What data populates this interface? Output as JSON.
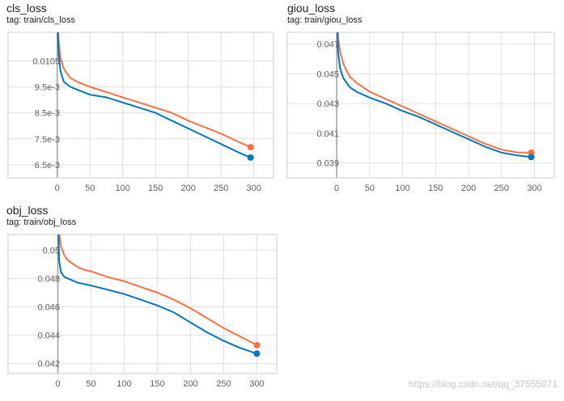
{
  "charts": [
    {
      "title": "cls_loss",
      "tag": "tag: train/cls_loss"
    },
    {
      "title": "giou_loss",
      "tag": "tag: train/giou_loss"
    },
    {
      "title": "obj_loss",
      "tag": "tag: train/obj_loss"
    }
  ],
  "watermark": "https://blog.csdn.net/qq_37555071",
  "colors": {
    "orange": "#ff7043",
    "blue": "#0077bb",
    "grid": "#e0e0e0",
    "zero_axis": "#9e9e9e",
    "border": "#cccccc"
  },
  "chart_data": [
    {
      "type": "line",
      "title": "cls_loss",
      "x_ticks": [
        0,
        50,
        100,
        150,
        200,
        250,
        300
      ],
      "y_ticks": [
        0.0105,
        0.0095,
        0.0085,
        0.0075,
        0.0065
      ],
      "y_tick_labels": [
        "0.0105",
        "9.5e-3",
        "8.5e-3",
        "7.5e-3",
        "6.5e-3"
      ],
      "xlim": [
        -75,
        330
      ],
      "ylim": [
        0.006,
        0.0116
      ],
      "grid": true,
      "series": [
        {
          "color": "#ff7043",
          "x": [
            0,
            2,
            5,
            10,
            15,
            20,
            30,
            40,
            50,
            75,
            100,
            125,
            150,
            175,
            200,
            225,
            250,
            275,
            295
          ],
          "y": [
            0.0125,
            0.0113,
            0.0106,
            0.0102,
            0.01,
            0.00985,
            0.0097,
            0.0096,
            0.0095,
            0.0093,
            0.0091,
            0.0089,
            0.0087,
            0.0085,
            0.0082,
            0.00795,
            0.0077,
            0.0074,
            0.00718
          ]
        },
        {
          "color": "#0077bb",
          "x": [
            0,
            2,
            5,
            10,
            15,
            20,
            30,
            40,
            50,
            75,
            100,
            125,
            150,
            175,
            200,
            225,
            250,
            275,
            295
          ],
          "y": [
            0.0125,
            0.0108,
            0.0101,
            0.0097,
            0.0096,
            0.0095,
            0.0094,
            0.0093,
            0.0092,
            0.0091,
            0.0089,
            0.0087,
            0.0085,
            0.0082,
            0.0079,
            0.0076,
            0.0073,
            0.007,
            0.00678
          ]
        }
      ]
    },
    {
      "type": "line",
      "title": "giou_loss",
      "x_ticks": [
        0,
        50,
        100,
        150,
        200,
        250,
        300
      ],
      "y_ticks": [
        0.047,
        0.045,
        0.043,
        0.041,
        0.039
      ],
      "y_tick_labels": [
        "0.047",
        "0.045",
        "0.043",
        "0.041",
        "0.039"
      ],
      "xlim": [
        -75,
        330
      ],
      "ylim": [
        0.038,
        0.0478
      ],
      "grid": true,
      "series": [
        {
          "color": "#ff7043",
          "x": [
            0,
            2,
            5,
            10,
            15,
            20,
            30,
            40,
            50,
            75,
            100,
            125,
            150,
            175,
            200,
            225,
            250,
            275,
            295
          ],
          "y": [
            0.05,
            0.0475,
            0.0465,
            0.0457,
            0.0452,
            0.0448,
            0.0444,
            0.0441,
            0.0438,
            0.0433,
            0.0428,
            0.0423,
            0.0418,
            0.0413,
            0.0408,
            0.0403,
            0.0399,
            0.0397,
            0.0397
          ]
        },
        {
          "color": "#0077bb",
          "x": [
            0,
            2,
            5,
            10,
            15,
            20,
            30,
            40,
            50,
            75,
            100,
            125,
            150,
            175,
            200,
            225,
            250,
            275,
            295
          ],
          "y": [
            0.05,
            0.0465,
            0.0454,
            0.0447,
            0.0444,
            0.0441,
            0.0438,
            0.0436,
            0.0434,
            0.043,
            0.0425,
            0.0421,
            0.0416,
            0.0411,
            0.0406,
            0.0401,
            0.0397,
            0.0395,
            0.0394
          ]
        }
      ]
    },
    {
      "type": "line",
      "title": "obj_loss",
      "x_ticks": [
        0,
        50,
        100,
        150,
        200,
        250,
        300
      ],
      "y_ticks": [
        0.05,
        0.048,
        0.046,
        0.044,
        0.042
      ],
      "y_tick_labels": [
        "0.05",
        "0.048",
        "0.046",
        "0.044",
        "0.042"
      ],
      "xlim": [
        -75,
        330
      ],
      "ylim": [
        0.0413,
        0.0511
      ],
      "grid": true,
      "series": [
        {
          "color": "#ff7043",
          "x": [
            0,
            2,
            5,
            10,
            15,
            20,
            30,
            40,
            50,
            75,
            100,
            125,
            150,
            175,
            200,
            225,
            250,
            275,
            300
          ],
          "y": [
            0.053,
            0.0512,
            0.0502,
            0.0496,
            0.0493,
            0.0491,
            0.0488,
            0.0486,
            0.0485,
            0.0481,
            0.0478,
            0.0474,
            0.047,
            0.0465,
            0.0459,
            0.0452,
            0.0445,
            0.0439,
            0.0433
          ]
        },
        {
          "color": "#0077bb",
          "x": [
            0,
            2,
            5,
            10,
            15,
            20,
            30,
            40,
            50,
            75,
            100,
            125,
            150,
            175,
            200,
            225,
            250,
            275,
            300
          ],
          "y": [
            0.053,
            0.0492,
            0.0484,
            0.0481,
            0.048,
            0.0479,
            0.0477,
            0.0476,
            0.0475,
            0.0472,
            0.0469,
            0.0465,
            0.0461,
            0.0456,
            0.0449,
            0.0442,
            0.0436,
            0.0431,
            0.0427
          ]
        }
      ]
    }
  ]
}
